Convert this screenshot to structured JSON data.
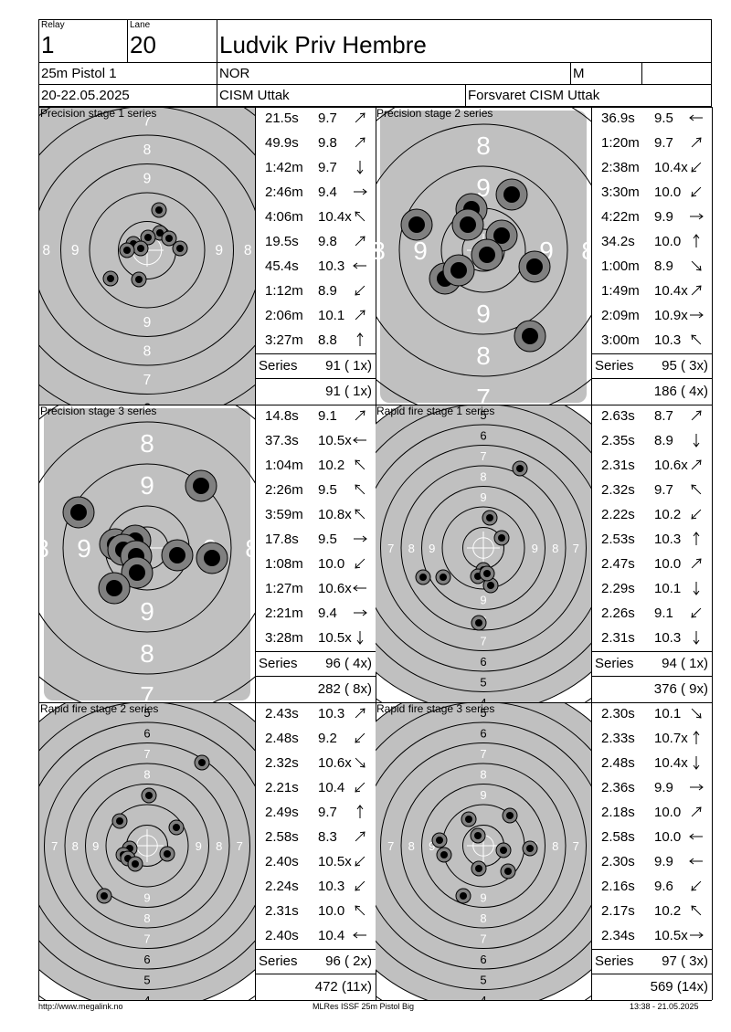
{
  "header": {
    "relay_label": "Relay",
    "relay": "1",
    "lane_label": "Lane",
    "lane": "20",
    "name": "Ludvik Priv Hembre",
    "event": "25m Pistol 1",
    "nation": "NOR",
    "gender": "M",
    "dates": "20-22.05.2025",
    "competition": "CISM Uttak",
    "club": "Forsvaret CISM Uttak"
  },
  "footer": {
    "url": "http://www.megalink.no",
    "program": "MLRes ISSF 25m Pistol Big",
    "timestamp": "13:38 - 21.05.2025"
  },
  "series_label": "Series",
  "colors": {
    "black": "#000000",
    "ring_gray": "#c0c0c0",
    "shot_gray": "#808080"
  },
  "stages": [
    {
      "title": "Precision stage 1 series",
      "target": "rapid",
      "zoom": 1.4,
      "shots": [
        {
          "time": "21.5s",
          "value": "9.7",
          "dir": "ne"
        },
        {
          "time": "49.9s",
          "value": "9.8",
          "dir": "ne"
        },
        {
          "time": "1:42m",
          "value": "9.7",
          "dir": "s"
        },
        {
          "time": "2:46m",
          "value": "9.4",
          "dir": "e"
        },
        {
          "time": "4:06m",
          "value": "10.4x",
          "dir": "nw"
        },
        {
          "time": "19.5s",
          "value": "9.8",
          "dir": "ne"
        },
        {
          "time": "45.4s",
          "value": "10.3",
          "dir": "w"
        },
        {
          "time": "1:12m",
          "value": "8.9",
          "dir": "sw"
        },
        {
          "time": "2:06m",
          "value": "10.1",
          "dir": "ne"
        },
        {
          "time": "3:27m",
          "value": "8.8",
          "dir": "n"
        }
      ],
      "series": "91 ( 1x)",
      "total": "91 ( 1x)",
      "hits": [
        {
          "dx": 13,
          "dy": -44
        },
        {
          "dx": 14,
          "dy": -19
        },
        {
          "dx": 24,
          "dy": -13
        },
        {
          "dx": 36,
          "dy": -2
        },
        {
          "dx": 1,
          "dy": -14
        },
        {
          "dx": -15,
          "dy": -7
        },
        {
          "dx": -7,
          "dy": -2
        },
        {
          "dx": -22,
          "dy": 0
        },
        {
          "dx": -9,
          "dy": 32
        },
        {
          "dx": -40,
          "dy": 31
        }
      ]
    },
    {
      "title": "Precision stage 2 series",
      "target": "precision",
      "zoom": 1.0,
      "shots": [
        {
          "time": "36.9s",
          "value": "9.5",
          "dir": "w"
        },
        {
          "time": "1:20m",
          "value": "9.7",
          "dir": "ne"
        },
        {
          "time": "2:38m",
          "value": "10.4x",
          "dir": "sw"
        },
        {
          "time": "3:30m",
          "value": "10.0",
          "dir": "sw"
        },
        {
          "time": "4:22m",
          "value": "9.9",
          "dir": "e"
        },
        {
          "time": "34.2s",
          "value": "10.0",
          "dir": "n"
        },
        {
          "time": "1:00m",
          "value": "8.9",
          "dir": "se"
        },
        {
          "time": "1:49m",
          "value": "10.4x",
          "dir": "ne"
        },
        {
          "time": "2:09m",
          "value": "10.9x",
          "dir": "e"
        },
        {
          "time": "3:00m",
          "value": "10.3",
          "dir": "nw"
        }
      ],
      "series": "95 ( 3x)",
      "total": "186 ( 4x)",
      "hits": [
        {
          "dx": -73,
          "dy": -28
        },
        {
          "dx": -13,
          "dy": -45
        },
        {
          "dx": -17,
          "dy": -28
        },
        {
          "dx": 31,
          "dy": -61
        },
        {
          "dx": 20,
          "dy": -16
        },
        {
          "dx": 4,
          "dy": 5
        },
        {
          "dx": 56,
          "dy": 18
        },
        {
          "dx": -42,
          "dy": 31
        },
        {
          "dx": -27,
          "dy": 22
        },
        {
          "dx": 51,
          "dy": 94
        }
      ]
    },
    {
      "title": "Precision stage 3 series",
      "target": "precision",
      "zoom": 1.0,
      "shots": [
        {
          "time": "14.8s",
          "value": "9.1",
          "dir": "ne"
        },
        {
          "time": "37.3s",
          "value": "10.5x",
          "dir": "w"
        },
        {
          "time": "1:04m",
          "value": "10.2",
          "dir": "nw"
        },
        {
          "time": "2:26m",
          "value": "9.5",
          "dir": "nw"
        },
        {
          "time": "3:59m",
          "value": "10.8x",
          "dir": "nw"
        },
        {
          "time": "17.8s",
          "value": "9.5",
          "dir": "e"
        },
        {
          "time": "1:08m",
          "value": "10.0",
          "dir": "sw"
        },
        {
          "time": "1:27m",
          "value": "10.6x",
          "dir": "w"
        },
        {
          "time": "2:21m",
          "value": "9.4",
          "dir": "e"
        },
        {
          "time": "3:28m",
          "value": "10.5x",
          "dir": "s"
        }
      ],
      "series": "96 ( 4x)",
      "total": "282 ( 8x)",
      "hits": [
        {
          "dx": -75,
          "dy": -39
        },
        {
          "dx": -35,
          "dy": -4
        },
        {
          "dx": -13,
          "dy": -8
        },
        {
          "dx": -26,
          "dy": 2
        },
        {
          "dx": -12,
          "dy": 9
        },
        {
          "dx": 33,
          "dy": 8
        },
        {
          "dx": 71,
          "dy": 11
        },
        {
          "dx": -11,
          "dy": 27
        },
        {
          "dx": -36,
          "dy": 44
        },
        {
          "dx": 59,
          "dy": -68
        }
      ]
    },
    {
      "title": "Rapid fire stage 1 series",
      "target": "rapid",
      "zoom": 1.0,
      "shots": [
        {
          "time": "2.63s",
          "value": "8.7",
          "dir": "ne"
        },
        {
          "time": "2.35s",
          "value": "8.9",
          "dir": "s"
        },
        {
          "time": "2.31s",
          "value": "10.6x",
          "dir": "ne"
        },
        {
          "time": "2.32s",
          "value": "9.7",
          "dir": "nw"
        },
        {
          "time": "2.22s",
          "value": "10.2",
          "dir": "sw"
        },
        {
          "time": "2.53s",
          "value": "10.3",
          "dir": "n"
        },
        {
          "time": "2.47s",
          "value": "10.0",
          "dir": "ne"
        },
        {
          "time": "2.29s",
          "value": "10.1",
          "dir": "s"
        },
        {
          "time": "2.26s",
          "value": "9.1",
          "dir": "sw"
        },
        {
          "time": "2.31s",
          "value": "10.3",
          "dir": "s"
        }
      ],
      "series": "94 ( 1x)",
      "total": "376 ( 9x)",
      "hits": [
        {
          "dx": 40,
          "dy": -87
        },
        {
          "dx": 7,
          "dy": -33
        },
        {
          "dx": 20,
          "dy": -11
        },
        {
          "dx": 0,
          "dy": 24
        },
        {
          "dx": -6,
          "dy": 31
        },
        {
          "dx": 8,
          "dy": 41
        },
        {
          "dx": -44,
          "dy": 32
        },
        {
          "dx": -66,
          "dy": 32
        },
        {
          "dx": -5,
          "dy": 82
        },
        {
          "dx": 4,
          "dy": 28
        }
      ]
    },
    {
      "title": "Rapid fire stage 2 series",
      "target": "rapid",
      "zoom": 1.0,
      "shots": [
        {
          "time": "2.43s",
          "value": "10.3",
          "dir": "ne"
        },
        {
          "time": "2.48s",
          "value": "9.2",
          "dir": "sw"
        },
        {
          "time": "2.32s",
          "value": "10.6x",
          "dir": "se"
        },
        {
          "time": "2.21s",
          "value": "10.4",
          "dir": "sw"
        },
        {
          "time": "2.49s",
          "value": "9.7",
          "dir": "n"
        },
        {
          "time": "2.58s",
          "value": "8.3",
          "dir": "ne"
        },
        {
          "time": "2.40s",
          "value": "10.5x",
          "dir": "sw"
        },
        {
          "time": "2.24s",
          "value": "10.3",
          "dir": "sw"
        },
        {
          "time": "2.31s",
          "value": "10.0",
          "dir": "nw"
        },
        {
          "time": "2.40s",
          "value": "10.4",
          "dir": "w"
        }
      ],
      "series": "96 ( 2x)",
      "total": "472 (11x)",
      "hits": [
        {
          "dx": 60,
          "dy": -91
        },
        {
          "dx": 2,
          "dy": -55
        },
        {
          "dx": -30,
          "dy": -27
        },
        {
          "dx": 32,
          "dy": -20
        },
        {
          "dx": -19,
          "dy": 3
        },
        {
          "dx": -26,
          "dy": 10
        },
        {
          "dx": -21,
          "dy": 14
        },
        {
          "dx": -13,
          "dy": 20
        },
        {
          "dx": 22,
          "dy": 9
        },
        {
          "dx": -47,
          "dy": 55
        }
      ]
    },
    {
      "title": "Rapid fire stage 3 series",
      "target": "rapid",
      "zoom": 1.0,
      "shots": [
        {
          "time": "2.30s",
          "value": "10.1",
          "dir": "se"
        },
        {
          "time": "2.33s",
          "value": "10.7x",
          "dir": "n"
        },
        {
          "time": "2.48s",
          "value": "10.4x",
          "dir": "s"
        },
        {
          "time": "2.36s",
          "value": "9.9",
          "dir": "e"
        },
        {
          "time": "2.18s",
          "value": "10.0",
          "dir": "ne"
        },
        {
          "time": "2.58s",
          "value": "10.0",
          "dir": "w"
        },
        {
          "time": "2.30s",
          "value": "9.9",
          "dir": "w"
        },
        {
          "time": "2.16s",
          "value": "9.6",
          "dir": "sw"
        },
        {
          "time": "2.17s",
          "value": "10.2",
          "dir": "nw"
        },
        {
          "time": "2.34s",
          "value": "10.5x",
          "dir": "e"
        }
      ],
      "series": "97 ( 3x)",
      "total": "569 (14x)",
      "hits": [
        {
          "dx": -16,
          "dy": -29
        },
        {
          "dx": 29,
          "dy": -33
        },
        {
          "dx": -6,
          "dy": -11
        },
        {
          "dx": -48,
          "dy": -6
        },
        {
          "dx": -43,
          "dy": 10
        },
        {
          "dx": 22,
          "dy": 5
        },
        {
          "dx": 51,
          "dy": 3
        },
        {
          "dx": -5,
          "dy": 25
        },
        {
          "dx": 27,
          "dy": 28
        },
        {
          "dx": -22,
          "dy": 55
        }
      ]
    }
  ]
}
